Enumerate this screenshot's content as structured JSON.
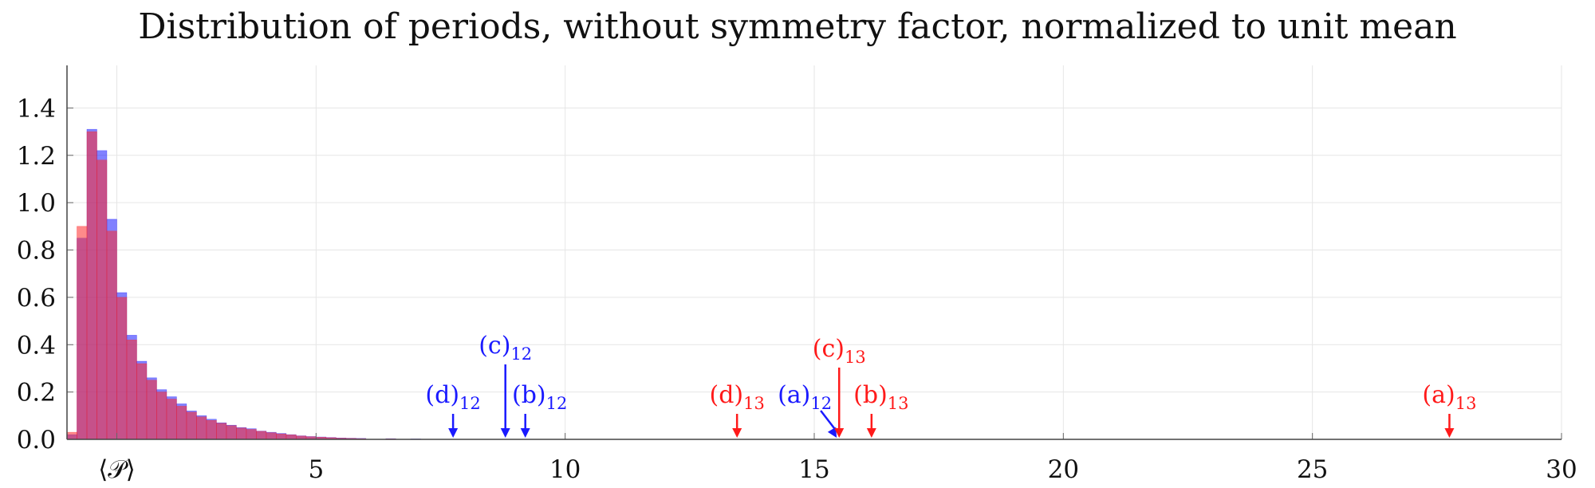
{
  "chart_data": {
    "type": "histogram",
    "title": "Distribution of periods, without symmetry factor, normalized to unit mean",
    "xlabel": "",
    "ylabel": "",
    "xlim": [
      0.0,
      30.0
    ],
    "ylim": [
      0.0,
      1.58
    ],
    "x_ticks": [
      {
        "value": 1,
        "label": "⟨𝒫⟩"
      },
      {
        "value": 5,
        "label": "5"
      },
      {
        "value": 10,
        "label": "10"
      },
      {
        "value": 15,
        "label": "15"
      },
      {
        "value": 20,
        "label": "20"
      },
      {
        "value": 25,
        "label": "25"
      },
      {
        "value": 30,
        "label": "30"
      }
    ],
    "y_ticks": [
      "0.0",
      "0.2",
      "0.4",
      "0.6",
      "0.8",
      "1.0",
      "1.2",
      "1.4"
    ],
    "grid": true,
    "series": [
      {
        "color": "#1a1aff",
        "x": [
          0.1,
          0.3,
          0.5,
          0.7,
          0.9,
          1.1,
          1.3,
          1.5,
          1.7,
          1.9,
          2.1,
          2.3,
          2.5,
          2.7,
          2.9,
          3.1,
          3.3,
          3.5,
          3.7,
          3.9,
          4.1,
          4.3,
          4.5,
          4.7,
          4.9,
          5.1,
          5.3,
          5.5,
          5.7,
          5.9,
          6.5,
          7.0
        ],
        "values": [
          0.02,
          0.85,
          1.31,
          1.22,
          0.93,
          0.62,
          0.44,
          0.33,
          0.26,
          0.21,
          0.18,
          0.15,
          0.12,
          0.1,
          0.085,
          0.07,
          0.06,
          0.05,
          0.045,
          0.035,
          0.03,
          0.025,
          0.02,
          0.015,
          0.012,
          0.01,
          0.008,
          0.006,
          0.005,
          0.004,
          0.003,
          0.002
        ]
      },
      {
        "color": "#ff2a2a",
        "x": [
          0.1,
          0.3,
          0.5,
          0.7,
          0.9,
          1.1,
          1.3,
          1.5,
          1.7,
          1.9,
          2.1,
          2.3,
          2.5,
          2.7,
          2.9,
          3.1,
          3.3,
          3.5,
          3.7,
          3.9,
          4.1,
          4.3,
          4.5,
          4.7,
          4.9,
          5.1,
          5.3,
          5.5,
          5.7,
          5.9,
          6.5,
          7.0
        ],
        "values": [
          0.03,
          0.9,
          1.3,
          1.18,
          0.88,
          0.6,
          0.42,
          0.32,
          0.25,
          0.2,
          0.17,
          0.14,
          0.115,
          0.095,
          0.08,
          0.068,
          0.058,
          0.048,
          0.042,
          0.034,
          0.028,
          0.023,
          0.019,
          0.014,
          0.011,
          0.009,
          0.007,
          0.005,
          0.004,
          0.003,
          0.002,
          0.001
        ]
      }
    ],
    "annotations": [
      {
        "main": "(d)",
        "sub": "12",
        "color": "#1a1aff",
        "x": 7.75,
        "y": 0.0
      },
      {
        "main": "(c)",
        "sub": "12",
        "color": "#1a1aff",
        "x": 8.8,
        "y": 0.0
      },
      {
        "main": "(b)",
        "sub": "12",
        "color": "#1a1aff",
        "x": 9.2,
        "y": 0.0
      },
      {
        "main": "(a)",
        "sub": "12",
        "color": "#1a1aff",
        "x": 15.45,
        "y": 0.0
      },
      {
        "main": "(d)",
        "sub": "13",
        "color": "#ff1a1a",
        "x": 13.45,
        "y": 0.0
      },
      {
        "main": "(c)",
        "sub": "13",
        "color": "#ff1a1a",
        "x": 15.5,
        "y": 0.0
      },
      {
        "main": "(b)",
        "sub": "13",
        "color": "#ff1a1a",
        "x": 16.15,
        "y": 0.0
      },
      {
        "main": "(a)",
        "sub": "13",
        "color": "#ff1a1a",
        "x": 27.75,
        "y": 0.0
      }
    ]
  }
}
